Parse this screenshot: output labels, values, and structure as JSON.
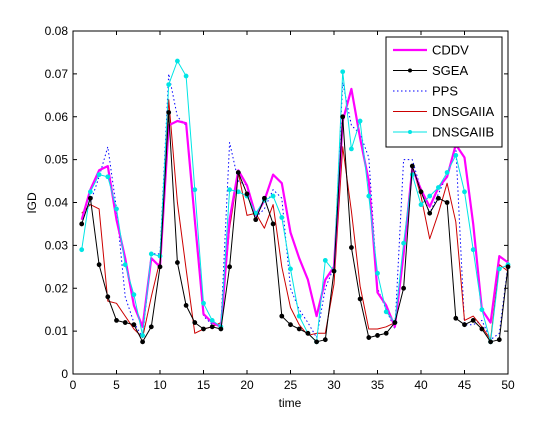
{
  "chart_data": {
    "type": "line",
    "title": "",
    "xlabel": "time",
    "ylabel": "IGD",
    "xlim": [
      0,
      50
    ],
    "ylim": [
      0,
      0.08
    ],
    "xticks": [
      "0",
      "5",
      "10",
      "15",
      "20",
      "25",
      "30",
      "35",
      "40",
      "45",
      "50"
    ],
    "yticks": [
      "0",
      "0.01",
      "0.02",
      "0.03",
      "0.04",
      "0.05",
      "0.06",
      "0.07",
      "0.08"
    ],
    "grid": false,
    "legend_position": "top-right",
    "x": [
      1,
      2,
      3,
      4,
      5,
      6,
      7,
      8,
      9,
      10,
      11,
      12,
      13,
      14,
      15,
      16,
      17,
      18,
      19,
      20,
      21,
      22,
      23,
      24,
      25,
      26,
      27,
      28,
      29,
      30,
      31,
      32,
      33,
      34,
      35,
      36,
      37,
      38,
      39,
      40,
      41,
      42,
      43,
      44,
      45,
      46,
      47,
      48,
      49,
      50
    ],
    "series": [
      {
        "name": "CDDV",
        "color": "#ff00ff",
        "style": "solid-thick",
        "values": [
          0.036,
          0.043,
          0.0475,
          0.0485,
          0.036,
          0.027,
          0.016,
          0.011,
          0.027,
          0.025,
          0.058,
          0.059,
          0.0585,
          0.036,
          0.014,
          0.012,
          0.011,
          0.036,
          0.0475,
          0.044,
          0.037,
          0.0405,
          0.0465,
          0.0445,
          0.033,
          0.027,
          0.022,
          0.0135,
          0.022,
          0.025,
          0.059,
          0.0665,
          0.055,
          0.045,
          0.019,
          0.016,
          0.011,
          0.028,
          0.048,
          0.043,
          0.039,
          0.0435,
          0.046,
          0.0535,
          0.0505,
          0.035,
          0.015,
          0.012,
          0.0275,
          0.026
        ]
      },
      {
        "name": "SGEA",
        "color": "#000000",
        "style": "solid-dot-marker",
        "values": [
          0.035,
          0.041,
          0.0255,
          0.018,
          0.0125,
          0.012,
          0.0115,
          0.0075,
          0.011,
          0.025,
          0.061,
          0.026,
          0.016,
          0.012,
          0.0105,
          0.011,
          0.0105,
          0.025,
          0.047,
          0.042,
          0.036,
          0.041,
          0.035,
          0.0135,
          0.0115,
          0.0105,
          0.0095,
          0.0075,
          0.008,
          0.024,
          0.06,
          0.0295,
          0.0175,
          0.0085,
          0.009,
          0.0095,
          0.012,
          0.02,
          0.0485,
          0.0425,
          0.0375,
          0.041,
          0.04,
          0.013,
          0.0115,
          0.0125,
          0.0105,
          0.0075,
          0.008,
          0.025
        ]
      },
      {
        "name": "PPS",
        "color": "#0000ff",
        "style": "dotted",
        "values": [
          0.036,
          0.04,
          0.046,
          0.053,
          0.0385,
          0.018,
          0.012,
          0.0085,
          0.028,
          0.028,
          0.07,
          0.06,
          0.058,
          0.035,
          0.0135,
          0.0115,
          0.0115,
          0.054,
          0.045,
          0.044,
          0.0365,
          0.0385,
          0.043,
          0.041,
          0.02,
          0.015,
          0.012,
          0.0085,
          0.02,
          0.025,
          0.068,
          0.058,
          0.056,
          0.0505,
          0.02,
          0.015,
          0.0105,
          0.05,
          0.05,
          0.043,
          0.0375,
          0.042,
          0.0465,
          0.053,
          0.0115,
          0.0115,
          0.0125,
          0.008,
          0.0095,
          0.0255
        ]
      },
      {
        "name": "DNSGAIIA",
        "color": "#cc0000",
        "style": "solid-thin",
        "values": [
          0.0375,
          0.0395,
          0.0385,
          0.017,
          0.0165,
          0.0135,
          0.0105,
          0.0085,
          0.018,
          0.0265,
          0.064,
          0.04,
          0.0245,
          0.0095,
          0.0105,
          0.011,
          0.012,
          0.034,
          0.047,
          0.037,
          0.0375,
          0.034,
          0.0395,
          0.025,
          0.0155,
          0.0115,
          0.009,
          0.0095,
          0.0095,
          0.021,
          0.053,
          0.038,
          0.0205,
          0.0105,
          0.0105,
          0.011,
          0.012,
          0.029,
          0.0485,
          0.0415,
          0.0315,
          0.0375,
          0.0445,
          0.0355,
          0.0125,
          0.0135,
          0.011,
          0.008,
          0.0255,
          0.024
        ]
      },
      {
        "name": "DNSGAIIB",
        "color": "#00e5e5",
        "style": "solid-dot-marker",
        "values": [
          0.029,
          0.0425,
          0.0465,
          0.046,
          0.0385,
          0.0255,
          0.0185,
          0.009,
          0.028,
          0.0275,
          0.0675,
          0.073,
          0.0695,
          0.043,
          0.0165,
          0.0125,
          0.011,
          0.043,
          0.0425,
          0.0415,
          0.0375,
          0.0405,
          0.0415,
          0.0365,
          0.0245,
          0.0135,
          0.0095,
          0.0075,
          0.0265,
          0.024,
          0.0705,
          0.0525,
          0.059,
          0.0415,
          0.0235,
          0.0145,
          0.012,
          0.0305,
          0.0465,
          0.0395,
          0.0415,
          0.0435,
          0.047,
          0.051,
          0.0425,
          0.029,
          0.015,
          0.0075,
          0.0245,
          0.0255
        ]
      }
    ]
  }
}
